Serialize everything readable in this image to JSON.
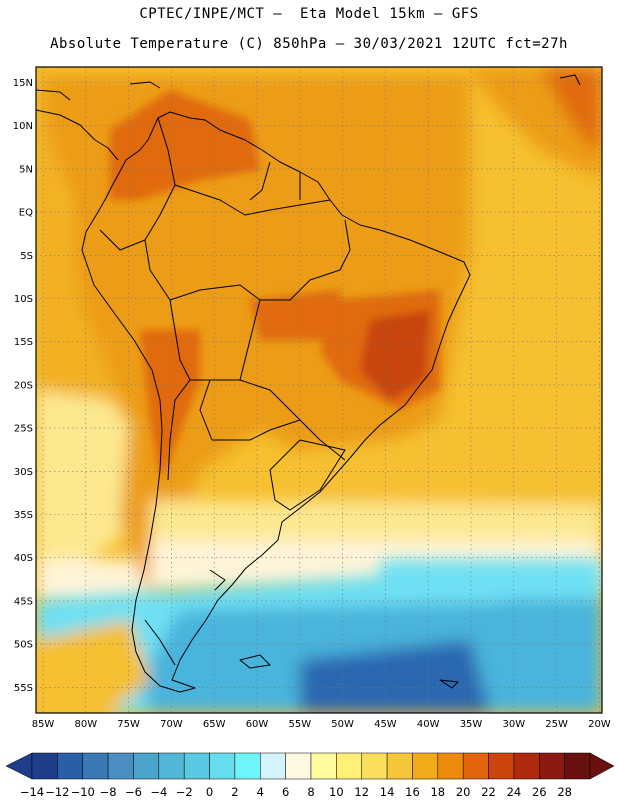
{
  "header": {
    "line1": "CPTEC/INPE/MCT –  Eta Model 15km – GFS",
    "line2": "Absolute Temperature (C) 850hPa – 30/03/2021 12UTC fct=27h"
  },
  "axes": {
    "lat_labels": [
      "15N",
      "10N",
      "5N",
      "EQ",
      "5S",
      "10S",
      "15S",
      "20S",
      "25S",
      "30S",
      "35S",
      "40S",
      "45S",
      "50S",
      "55S"
    ],
    "lon_labels": [
      "85W",
      "80W",
      "75W",
      "70W",
      "65W",
      "60W",
      "55W",
      "50W",
      "45W",
      "40W",
      "35W",
      "30W",
      "25W",
      "20W"
    ]
  },
  "colorbar": {
    "labels": [
      "-14",
      "-12",
      "-10",
      "-8",
      "-6",
      "-4",
      "-2",
      "0",
      "2",
      "4",
      "6",
      "8",
      "10",
      "12",
      "14",
      "16",
      "18",
      "20",
      "22",
      "24",
      "26",
      "28"
    ],
    "colors": [
      "#1e3e8c",
      "#2a5ea6",
      "#3a78b6",
      "#4a8fc4",
      "#4aa4cc",
      "#52b6d6",
      "#5ac8e0",
      "#66dcec",
      "#70f4fc",
      "#d4f4fc",
      "#fff8e0",
      "#fffca0",
      "#fff078",
      "#fbde5c",
      "#f6c63a",
      "#f0aa1a",
      "#ec8a0c",
      "#e2640c",
      "#cc440e",
      "#b02a10",
      "#8a1a12",
      "#6a1010"
    ]
  },
  "map_colors": {
    "ocean_south_deep": "#2a68b0",
    "ocean_south_mid": "#4ab4dc",
    "ocean_south_light": "#6ee0f4",
    "band_pale": "#fff4d8",
    "band_yellow": "#fde890",
    "atlantic_gold": "#f6c030",
    "pacific_gold": "#f2b024",
    "land_orange": "#ec9c14",
    "hot_orange": "#e06a10",
    "hot_red": "#c84410"
  }
}
